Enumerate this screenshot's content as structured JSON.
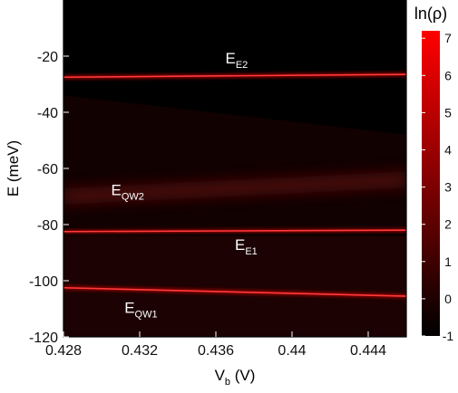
{
  "chart_data": {
    "type": "heatmap",
    "xlabel": {
      "main": "V",
      "sub": "b",
      "unit": " (V)"
    },
    "ylabel": "E (meV)",
    "xlim": [
      0.428,
      0.446
    ],
    "ylim": [
      -120,
      0
    ],
    "xticks": [
      "0.428",
      "0.432",
      "0.436",
      "0.44",
      "0.444"
    ],
    "xtick_values": [
      0.428,
      0.432,
      0.436,
      0.44,
      0.444
    ],
    "yticks": [
      "-20",
      "-40",
      "-60",
      "-80",
      "-100",
      "-120"
    ],
    "ytick_values": [
      -20,
      -40,
      -60,
      -80,
      -100,
      -120
    ],
    "colorbar": {
      "label": "ln(ρ)",
      "range": [
        -1,
        7.2
      ],
      "ticks": [
        "7",
        "6",
        "5",
        "4",
        "3",
        "2",
        "1",
        "0",
        "-1"
      ],
      "tick_values": [
        7,
        6,
        5,
        4,
        3,
        2,
        1,
        0,
        -1
      ],
      "colors": [
        "#000000",
        "#ff0000"
      ]
    },
    "lines": [
      {
        "label": "E",
        "sub": "E2",
        "E_start": -27.5,
        "E_end": -26.5
      },
      {
        "label": "E",
        "sub": "E1",
        "E_start": -82.5,
        "E_end": -82.0
      },
      {
        "label": "E",
        "sub": "QW1",
        "E_start": -102.5,
        "E_end": -105.5
      }
    ],
    "diffuse_bands": [
      {
        "label": "E",
        "sub": "QW2",
        "E_start": -70.0,
        "E_end": -64.0
      }
    ],
    "annotations": [
      {
        "text": "E",
        "sub": "E2",
        "V": 0.4365,
        "E": -22.5
      },
      {
        "text": "E",
        "sub": "QW2",
        "V": 0.4305,
        "E": -69.5
      },
      {
        "text": "E",
        "sub": "E1",
        "V": 0.437,
        "E": -89.0
      },
      {
        "text": "E",
        "sub": "QW1",
        "V": 0.4312,
        "E": -111.5
      }
    ]
  }
}
